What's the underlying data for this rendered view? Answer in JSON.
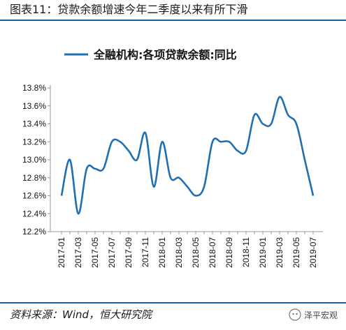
{
  "figure": {
    "caption": "图表11：贷款余额增速今年二季度以来有所下滑",
    "source": "资料来源：Wind，恒大研究院",
    "watermark": "泽平宏观"
  },
  "chart_data": {
    "type": "line",
    "title": "",
    "legend": [
      {
        "label": "全融机构:各项贷款余额:同比",
        "color": "#1f6fb2"
      }
    ],
    "legend_position": "top-center",
    "xlabel": "",
    "ylabel": "",
    "ylim": [
      12.2,
      13.8
    ],
    "yticks": [
      "12.2%",
      "12.4%",
      "12.6%",
      "12.8%",
      "13.0%",
      "13.2%",
      "13.4%",
      "13.6%",
      "13.8%"
    ],
    "grid": false,
    "x": [
      "2017-01",
      "2017-02",
      "2017-03",
      "2017-04",
      "2017-05",
      "2017-06",
      "2017-07",
      "2017-08",
      "2017-09",
      "2017-10",
      "2017-11",
      "2017-12",
      "2018-01",
      "2018-02",
      "2018-03",
      "2018-04",
      "2018-05",
      "2018-06",
      "2018-07",
      "2018-08",
      "2018-09",
      "2018-10",
      "2018-11",
      "2018-12",
      "2019-01",
      "2019-02",
      "2019-03",
      "2019-04",
      "2019-05",
      "2019-06",
      "2019-07"
    ],
    "xticks": [
      "2017-01",
      "2017-03",
      "2017-05",
      "2017-07",
      "2017-09",
      "2017-11",
      "2018-01",
      "2018-03",
      "2018-05",
      "2018-07",
      "2018-09",
      "2018-11",
      "2019-01",
      "2019-03",
      "2019-05",
      "2019-07"
    ],
    "series": [
      {
        "name": "全融机构:各项贷款余额:同比",
        "color": "#1f6fb2",
        "values": [
          12.6,
          13.0,
          12.4,
          12.9,
          12.9,
          12.9,
          13.2,
          13.2,
          13.1,
          13.0,
          13.3,
          12.7,
          13.2,
          12.8,
          12.8,
          12.7,
          12.6,
          12.7,
          13.2,
          13.2,
          13.2,
          13.1,
          13.1,
          13.5,
          13.4,
          13.4,
          13.7,
          13.5,
          13.4,
          13.0,
          12.6
        ]
      }
    ]
  }
}
